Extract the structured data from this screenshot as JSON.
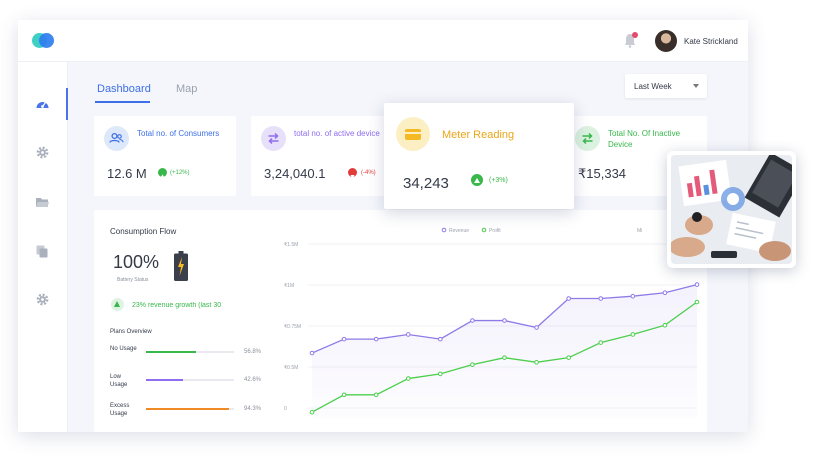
{
  "user": {
    "name": "Kate Strickland"
  },
  "tabs": [
    {
      "label": "Dashboard",
      "active": true
    },
    {
      "label": "Map",
      "active": false
    }
  ],
  "period_select": {
    "value": "Last Week"
  },
  "cards": [
    {
      "label": "Total no. of Consumers",
      "value": "12.6 M",
      "change": "(+12%)",
      "trend": "up",
      "color": "#3d6fe8"
    },
    {
      "label": "total no. of active device",
      "value": "3,24,040.1",
      "change": "(-4%)",
      "trend": "down",
      "color": "#8f6df0"
    },
    {
      "label": "Meter Reading",
      "value": "34,243",
      "change": "(+3%)",
      "trend": "up",
      "color": "#e9a617"
    },
    {
      "label": "Total No. Of Inactive Device",
      "value": "₹15,334",
      "color": "#38b84b"
    }
  ],
  "consumption": {
    "title": "Consumption Flow",
    "battery_value": "100%",
    "battery_label": "Battery Status",
    "growth_text": "23% revenue growth (last 30",
    "plans_title": "Plans Overview",
    "plans": [
      {
        "label": "No Usage",
        "percent": "56.8%",
        "fraction": 0.568,
        "color": "#38b84b"
      },
      {
        "label": "Low Usage",
        "percent": "42.6%",
        "fraction": 0.426,
        "color": "#8f6df0"
      },
      {
        "label": "Excess Usage",
        "percent": "94.3%",
        "fraction": 0.943,
        "color": "#f08a24"
      }
    ]
  },
  "chart_data": {
    "type": "line",
    "x": [
      1,
      2,
      3,
      4,
      5,
      6,
      7,
      8,
      9,
      10,
      11,
      12,
      13
    ],
    "yticks": [
      "₹1.5M",
      "₹1M",
      "₹0.75M",
      "₹0.5M",
      "0"
    ],
    "ylim": [
      0,
      1.5
    ],
    "corner_label": "Mi",
    "legend_position": "top-center",
    "series": [
      {
        "name": "Revenue",
        "color": "#8f7ae6",
        "values": [
          0.56,
          0.68,
          0.68,
          0.72,
          0.68,
          0.84,
          0.84,
          0.78,
          1.03,
          1.03,
          1.05,
          1.08,
          1.15
        ]
      },
      {
        "name": "Profit",
        "color": "#4ccf4c",
        "values": [
          0.05,
          0.2,
          0.2,
          0.34,
          0.38,
          0.46,
          0.52,
          0.48,
          0.52,
          0.65,
          0.72,
          0.8,
          1.0
        ]
      }
    ]
  }
}
